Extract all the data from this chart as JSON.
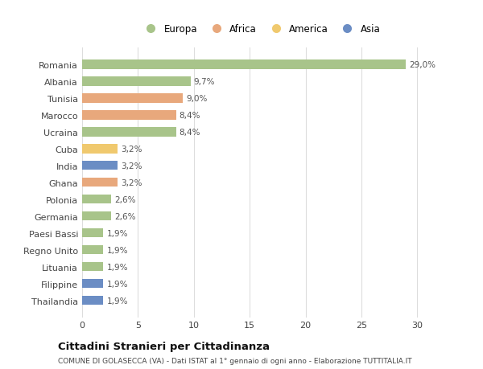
{
  "countries": [
    "Romania",
    "Albania",
    "Tunisia",
    "Marocco",
    "Ucraina",
    "Cuba",
    "India",
    "Ghana",
    "Polonia",
    "Germania",
    "Paesi Bassi",
    "Regno Unito",
    "Lituania",
    "Filippine",
    "Thailandia"
  ],
  "values": [
    29.0,
    9.7,
    9.0,
    8.4,
    8.4,
    3.2,
    3.2,
    3.2,
    2.6,
    2.6,
    1.9,
    1.9,
    1.9,
    1.9,
    1.9
  ],
  "labels": [
    "29,0%",
    "9,7%",
    "9,0%",
    "8,4%",
    "8,4%",
    "3,2%",
    "3,2%",
    "3,2%",
    "2,6%",
    "2,6%",
    "1,9%",
    "1,9%",
    "1,9%",
    "1,9%",
    "1,9%"
  ],
  "continents": [
    "Europa",
    "Europa",
    "Africa",
    "Africa",
    "Europa",
    "America",
    "Asia",
    "Africa",
    "Europa",
    "Europa",
    "Europa",
    "Europa",
    "Europa",
    "Asia",
    "Asia"
  ],
  "colors": {
    "Europa": "#a8c48a",
    "Africa": "#e8a87c",
    "America": "#f0c96e",
    "Asia": "#6b8dc4"
  },
  "legend_order": [
    "Europa",
    "Africa",
    "America",
    "Asia"
  ],
  "title": "Cittadini Stranieri per Cittadinanza",
  "subtitle": "COMUNE DI GOLASECCA (VA) - Dati ISTAT al 1° gennaio di ogni anno - Elaborazione TUTTITALIA.IT",
  "xlim": [
    0,
    32
  ],
  "xticks": [
    0,
    5,
    10,
    15,
    20,
    25,
    30
  ],
  "bg_color": "#ffffff",
  "grid_color": "#dddddd",
  "bar_height": 0.55
}
